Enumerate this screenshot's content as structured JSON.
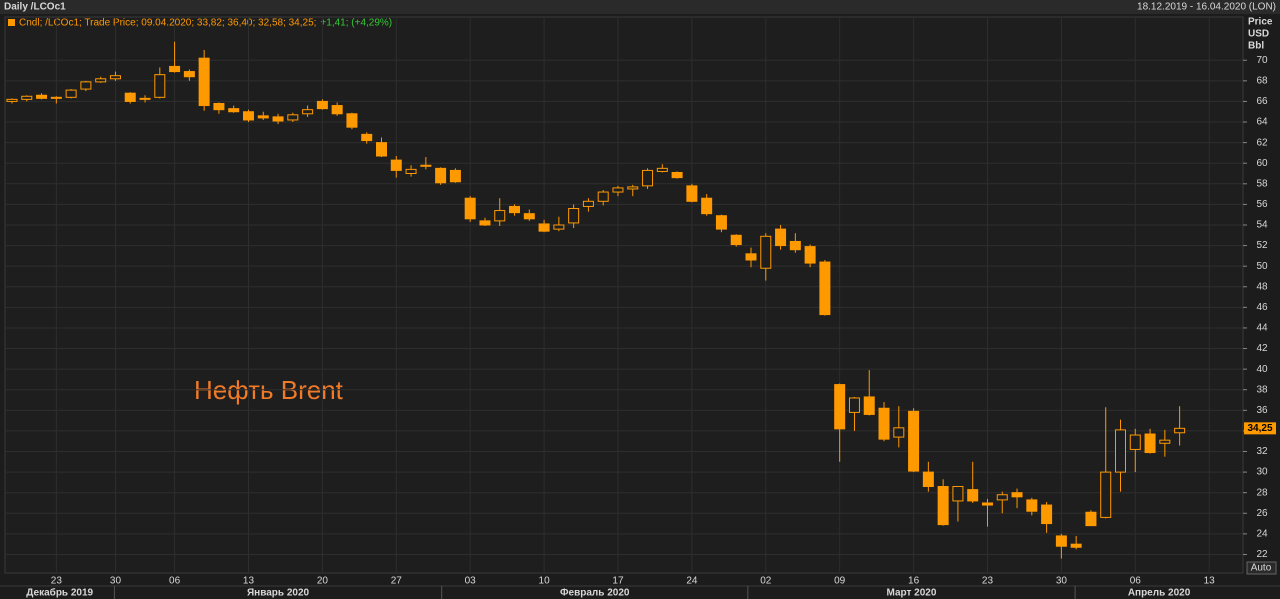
{
  "chart_data": {
    "type": "candlestick",
    "title": "Daily /LCOc1",
    "date_range": "18.12.2019 - 16.04.2020 (LON)",
    "legend_text": "Cndl; /LCOc1; Trade Price; 09.04.2020; 33,82; 36,40; 32,58; 34,25;",
    "change_text": "+1,41; (+4,29%)",
    "y_label": [
      "Price",
      "USD",
      "Bbl"
    ],
    "annotation": "Нефть Brent",
    "button": "Auto",
    "color": "#ff9900",
    "last_price": {
      "value": 34.25,
      "label": "34,25"
    },
    "ylim": [
      20.2,
      74.2
    ],
    "yticks": [
      22,
      24,
      26,
      28,
      30,
      32,
      34,
      36,
      38,
      40,
      42,
      44,
      46,
      48,
      50,
      52,
      54,
      56,
      58,
      60,
      62,
      64,
      66,
      68,
      70
    ],
    "grid": true,
    "months": [
      "Декабрь 2019",
      "Январь 2020",
      "Февраль 2020",
      "Март 2020",
      "Апрель 2020"
    ],
    "categories": [
      null,
      null,
      null,
      "23",
      null,
      null,
      null,
      "30",
      null,
      null,
      null,
      "06",
      null,
      null,
      null,
      null,
      "13",
      null,
      null,
      null,
      null,
      "20",
      null,
      null,
      null,
      null,
      "27",
      null,
      null,
      null,
      null,
      "03",
      null,
      null,
      null,
      null,
      "10",
      null,
      null,
      null,
      null,
      "17",
      null,
      null,
      null,
      null,
      "24",
      null,
      null,
      null,
      null,
      "02",
      null,
      null,
      null,
      null,
      "09",
      null,
      null,
      null,
      null,
      "16",
      null,
      null,
      null,
      null,
      "23",
      null,
      null,
      null,
      null,
      "30",
      null,
      null,
      null,
      null,
      "06",
      null,
      null,
      null,
      null,
      "13",
      null,
      null
    ],
    "series": [
      {
        "name": "Open",
        "values": [
          66.0,
          66.2,
          66.6,
          66.3,
          66.4,
          67.2,
          67.9,
          68.2,
          66.8,
          66.2,
          66.4,
          69.4,
          68.9,
          70.2,
          65.8,
          65.3,
          65.0,
          64.6,
          64.5,
          64.2,
          64.8,
          66.0,
          65.6,
          64.8,
          62.8,
          62.0,
          60.3,
          59.0,
          59.7,
          59.5,
          59.3,
          56.6,
          54.4,
          54.4,
          55.8,
          55.1,
          54.1,
          53.6,
          54.2,
          55.8,
          56.3,
          57.2,
          57.5,
          57.8,
          59.2,
          59.1,
          57.8,
          56.6,
          54.9,
          53.0,
          51.2,
          49.8,
          53.6,
          52.4,
          51.9,
          50.4,
          38.5,
          35.8,
          37.3,
          36.2,
          33.4,
          35.9,
          30.0,
          28.6,
          27.2,
          28.3,
          27.0,
          27.3,
          28.0,
          27.3,
          26.8,
          23.8,
          23.0,
          26.1,
          25.6,
          30.0,
          32.2,
          33.7,
          32.8,
          33.82,
          null,
          null,
          null,
          null
        ]
      },
      {
        "name": "High",
        "values": [
          66.3,
          66.6,
          66.8,
          66.5,
          67.2,
          68.0,
          68.4,
          68.9,
          66.9,
          66.6,
          69.3,
          71.8,
          69.1,
          71.0,
          65.9,
          65.6,
          65.2,
          65.0,
          64.8,
          64.9,
          65.6,
          66.2,
          65.9,
          64.9,
          63.0,
          62.5,
          60.7,
          59.8,
          60.6,
          59.6,
          59.5,
          56.8,
          54.7,
          56.6,
          56.0,
          55.5,
          54.5,
          54.8,
          56.0,
          56.6,
          57.4,
          57.8,
          57.9,
          59.5,
          59.9,
          59.2,
          58.0,
          57.0,
          55.0,
          53.1,
          51.8,
          53.2,
          54.0,
          53.2,
          52.1,
          50.6,
          38.6,
          37.3,
          39.9,
          36.8,
          36.4,
          36.2,
          31.0,
          29.3,
          28.6,
          31.0,
          27.4,
          28.1,
          28.4,
          27.5,
          27.1,
          24.0,
          23.8,
          26.3,
          36.3,
          35.1,
          34.2,
          34.2,
          34.1,
          36.4,
          null,
          null,
          null,
          null
        ]
      },
      {
        "name": "Low",
        "values": [
          65.8,
          66.0,
          66.2,
          65.8,
          66.3,
          67.0,
          67.8,
          68.0,
          65.8,
          65.9,
          66.3,
          68.8,
          68.0,
          65.1,
          64.8,
          64.9,
          64.0,
          64.2,
          63.8,
          64.0,
          64.5,
          65.2,
          64.6,
          63.3,
          61.9,
          60.6,
          58.6,
          58.7,
          59.4,
          57.9,
          58.1,
          54.3,
          53.9,
          53.9,
          54.9,
          54.4,
          53.3,
          53.4,
          53.7,
          55.3,
          55.9,
          56.8,
          56.8,
          57.5,
          59.1,
          58.5,
          56.2,
          54.9,
          53.3,
          51.9,
          49.9,
          48.6,
          51.6,
          51.3,
          49.9,
          45.2,
          31.0,
          34.0,
          35.5,
          33.0,
          32.4,
          30.0,
          28.1,
          24.8,
          25.2,
          27.0,
          24.7,
          26.0,
          26.5,
          25.8,
          24.1,
          21.6,
          22.5,
          24.8,
          25.5,
          28.1,
          30.0,
          31.8,
          31.5,
          32.58,
          null,
          null,
          null,
          null
        ]
      },
      {
        "name": "Close",
        "values": [
          66.2,
          66.5,
          66.3,
          66.4,
          67.1,
          67.9,
          68.2,
          68.5,
          66.0,
          66.3,
          68.6,
          68.9,
          68.4,
          65.6,
          65.2,
          65.0,
          64.2,
          64.4,
          64.1,
          64.7,
          65.2,
          65.3,
          64.8,
          63.5,
          62.2,
          60.7,
          59.3,
          59.4,
          59.8,
          58.1,
          58.2,
          54.6,
          54.0,
          55.4,
          55.2,
          54.6,
          53.4,
          54.0,
          55.6,
          56.3,
          57.2,
          57.6,
          57.7,
          59.3,
          59.5,
          58.6,
          56.3,
          55.1,
          53.6,
          52.1,
          50.6,
          52.9,
          52.0,
          51.6,
          50.3,
          45.3,
          34.2,
          37.2,
          35.6,
          33.2,
          34.3,
          30.1,
          28.6,
          24.9,
          28.6,
          27.2,
          26.8,
          27.8,
          27.6,
          26.2,
          25.0,
          22.8,
          22.7,
          24.8,
          30.0,
          34.1,
          33.6,
          31.9,
          33.1,
          34.25,
          null,
          null,
          null,
          null
        ]
      }
    ]
  }
}
